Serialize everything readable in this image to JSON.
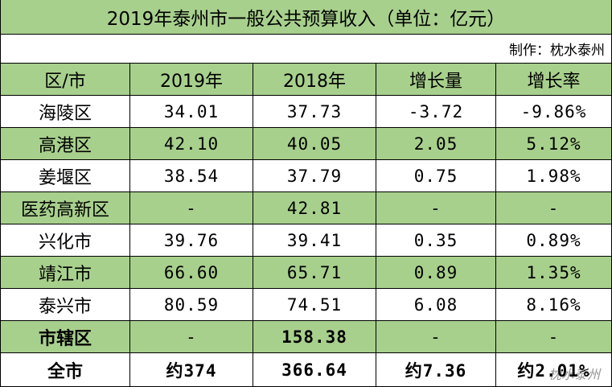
{
  "title": "2019年泰州市一般公共预算收入（单位：亿元）",
  "credit": "制作：枕水泰州",
  "columns": [
    "区/市",
    "2019年",
    "2018年",
    "增长量",
    "增长率"
  ],
  "rows": [
    {
      "name": "海陵区",
      "y2019": "34.01",
      "y2018": "37.73",
      "change": "-3.72",
      "rate": "-9.86%"
    },
    {
      "name": "高港区",
      "y2019": "42.10",
      "y2018": "40.05",
      "change": "2.05",
      "rate": "5.12%"
    },
    {
      "name": "姜堰区",
      "y2019": "38.54",
      "y2018": "37.79",
      "change": "0.75",
      "rate": "1.98%"
    },
    {
      "name": "医药高新区",
      "y2019": "-",
      "y2018": "42.81",
      "change": "-",
      "rate": "-"
    },
    {
      "name": "兴化市",
      "y2019": "39.76",
      "y2018": "39.41",
      "change": "0.35",
      "rate": "0.89%"
    },
    {
      "name": "靖江市",
      "y2019": "66.60",
      "y2018": "65.71",
      "change": "0.89",
      "rate": "1.35%"
    },
    {
      "name": "泰兴市",
      "y2019": "80.59",
      "y2018": "74.51",
      "change": "6.08",
      "rate": "8.16%"
    },
    {
      "name": "市辖区",
      "y2019": "-",
      "y2018": "158.38",
      "change": "-",
      "rate": "-"
    },
    {
      "name": "全市",
      "y2019": "约374",
      "y2018": "366.64",
      "change": "约7.36",
      "rate": "约2.01%"
    }
  ],
  "watermark": "枕水泰州",
  "colors": {
    "header_green": "#a8d08d",
    "border": "#000000"
  }
}
